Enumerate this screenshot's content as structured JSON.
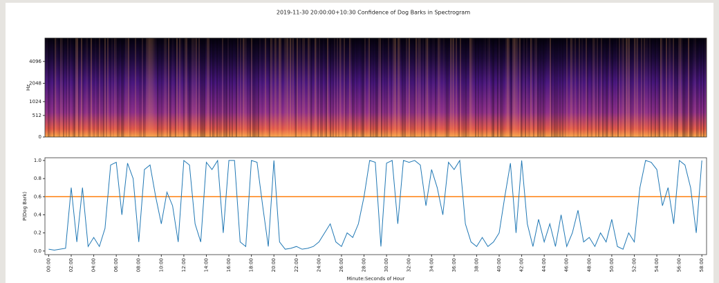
{
  "chart_data": [
    {
      "type": "spectrogram",
      "title": "2019-11-30 20:00:00+10:30 Confidence of Dog Barks in Spectrogram",
      "ylabel": "Hz",
      "yscale": "mel",
      "ylim": [
        0,
        8000
      ],
      "yticks": [
        0,
        512,
        1024,
        2048,
        4096
      ]
    },
    {
      "type": "line",
      "xlabel": "Minute:Seconds of Hour",
      "ylabel": "P(Dog Bark)",
      "x": [
        0,
        30,
        60,
        90,
        120,
        150,
        180,
        210,
        240,
        270,
        300,
        330,
        360,
        390,
        420,
        450,
        480,
        510,
        540,
        570,
        600,
        630,
        660,
        690,
        720,
        750,
        780,
        810,
        840,
        870,
        900,
        930,
        960,
        990,
        1020,
        1050,
        1080,
        1110,
        1140,
        1170,
        1200,
        1230,
        1260,
        1290,
        1320,
        1350,
        1380,
        1410,
        1440,
        1470,
        1500,
        1530,
        1560,
        1590,
        1620,
        1650,
        1680,
        1710,
        1740,
        1770,
        1800,
        1830,
        1860,
        1890,
        1920,
        1950,
        1980,
        2010,
        2040,
        2070,
        2100,
        2130,
        2160,
        2190,
        2220,
        2250,
        2280,
        2310,
        2340,
        2370,
        2400,
        2430,
        2460,
        2490,
        2520,
        2550,
        2580,
        2610,
        2640,
        2670,
        2700,
        2730,
        2760,
        2790,
        2820,
        2850,
        2880,
        2910,
        2940,
        2970,
        3000,
        3030,
        3060,
        3090,
        3120,
        3150,
        3180,
        3210,
        3240,
        3270,
        3300,
        3330,
        3360,
        3390,
        3420,
        3450,
        3480
      ],
      "series": [
        {
          "color": "#1f77b4",
          "values": [
            0.02,
            0.01,
            0.02,
            0.03,
            0.7,
            0.1,
            0.7,
            0.05,
            0.15,
            0.05,
            0.25,
            0.95,
            0.98,
            0.4,
            0.97,
            0.8,
            0.1,
            0.9,
            0.95,
            0.6,
            0.3,
            0.65,
            0.5,
            0.1,
            1.0,
            0.95,
            0.3,
            0.1,
            0.98,
            0.9,
            1.0,
            0.2,
            1.0,
            1.0,
            0.1,
            0.05,
            1.0,
            0.98,
            0.5,
            0.05,
            1.0,
            0.1,
            0.02,
            0.03,
            0.05,
            0.02,
            0.03,
            0.05,
            0.1,
            0.2,
            0.3,
            0.1,
            0.05,
            0.2,
            0.15,
            0.3,
            0.6,
            1.0,
            0.98,
            0.05,
            0.97,
            1.0,
            0.3,
            1.0,
            0.98,
            1.0,
            0.95,
            0.5,
            0.9,
            0.7,
            0.4,
            0.98,
            0.9,
            1.0,
            0.3,
            0.1,
            0.05,
            0.15,
            0.05,
            0.1,
            0.2,
            0.6,
            0.97,
            0.2,
            1.0,
            0.3,
            0.05,
            0.35,
            0.1,
            0.3,
            0.05,
            0.4,
            0.05,
            0.2,
            0.45,
            0.1,
            0.15,
            0.05,
            0.2,
            0.1,
            0.35,
            0.05,
            0.02,
            0.2,
            0.1,
            0.7,
            1.0,
            0.98,
            0.9,
            0.5,
            0.7,
            0.3,
            1.0,
            0.95,
            0.7,
            0.2,
            1.0
          ]
        }
      ],
      "hlines": [
        {
          "y": 0.6,
          "color": "#ff7f0e"
        }
      ],
      "xlim": [
        -20,
        3505
      ],
      "ylim": [
        -0.04,
        1.03
      ],
      "xticks": [
        {
          "value": 0,
          "label": "00:00"
        },
        {
          "value": 120,
          "label": "02:00"
        },
        {
          "value": 240,
          "label": "04:00"
        },
        {
          "value": 360,
          "label": "06:00"
        },
        {
          "value": 480,
          "label": "08:00"
        },
        {
          "value": 600,
          "label": "10:00"
        },
        {
          "value": 720,
          "label": "12:00"
        },
        {
          "value": 840,
          "label": "14:00"
        },
        {
          "value": 960,
          "label": "16:00"
        },
        {
          "value": 1080,
          "label": "18:00"
        },
        {
          "value": 1200,
          "label": "20:00"
        },
        {
          "value": 1320,
          "label": "22:00"
        },
        {
          "value": 1440,
          "label": "24:00"
        },
        {
          "value": 1560,
          "label": "26:00"
        },
        {
          "value": 1680,
          "label": "28:00"
        },
        {
          "value": 1800,
          "label": "30:00"
        },
        {
          "value": 1920,
          "label": "32:00"
        },
        {
          "value": 2040,
          "label": "34:00"
        },
        {
          "value": 2160,
          "label": "36:00"
        },
        {
          "value": 2280,
          "label": "38:00"
        },
        {
          "value": 2400,
          "label": "40:00"
        },
        {
          "value": 2520,
          "label": "42:00"
        },
        {
          "value": 2640,
          "label": "44:00"
        },
        {
          "value": 2760,
          "label": "46:00"
        },
        {
          "value": 2880,
          "label": "48:00"
        },
        {
          "value": 3000,
          "label": "50:00"
        },
        {
          "value": 3120,
          "label": "52:00"
        },
        {
          "value": 3240,
          "label": "54:00"
        },
        {
          "value": 3360,
          "label": "56:00"
        },
        {
          "value": 3480,
          "label": "58:00"
        }
      ],
      "yticks": [
        {
          "value": 0,
          "label": "0.0"
        },
        {
          "value": 0.2,
          "label": "0.2"
        },
        {
          "value": 0.4,
          "label": "0.4"
        },
        {
          "value": 0.6,
          "label": "0.6"
        },
        {
          "value": 0.8,
          "label": "0.8"
        },
        {
          "value": 1,
          "label": "1.0"
        }
      ]
    }
  ]
}
